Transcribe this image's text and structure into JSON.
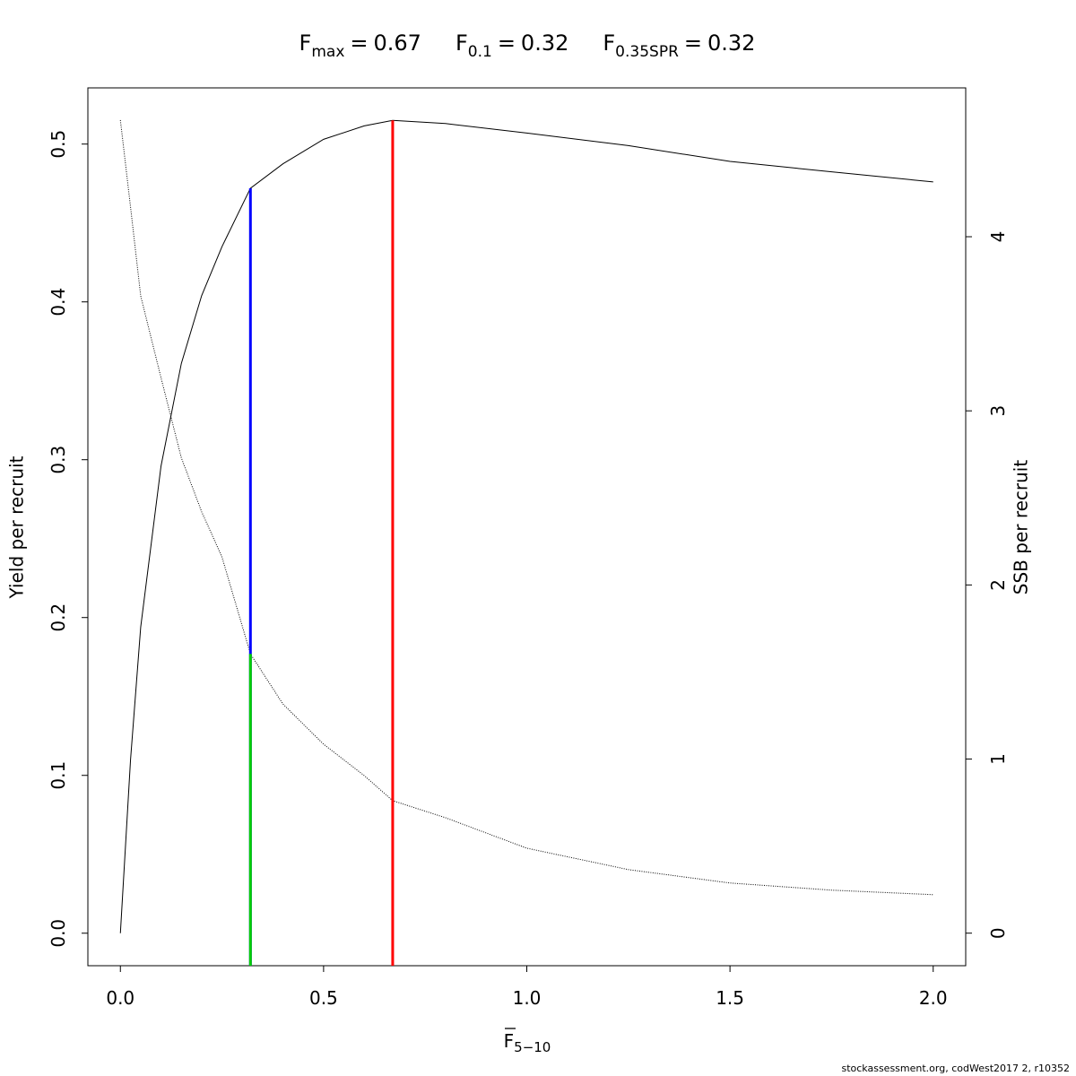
{
  "chart_data": {
    "type": "line",
    "title": [
      {
        "label": "F",
        "subscript": "max",
        "sep": "=",
        "value": 0.67
      },
      {
        "label": "F",
        "subscript": "0.1",
        "sep": "=",
        "value": 0.32
      },
      {
        "label": "F",
        "subscript": "0.35SPR",
        "sep": "=",
        "value": 0.32
      }
    ],
    "x_label": {
      "label": "F",
      "subscript": "5−10"
    },
    "y_label": "Yield per recruit",
    "y2_label": "SSB per recruit",
    "footnote": "stockassessment.org, codWest2017 2, r10352",
    "x": [
      0,
      0.025,
      0.05,
      0.1,
      0.15,
      0.2,
      0.25,
      0.32,
      0.4,
      0.5,
      0.6,
      0.67,
      0.8,
      1.0,
      1.25,
      1.5,
      1.75,
      2.0
    ],
    "series": [
      {
        "name": "Yield per recruit",
        "color": "#000000",
        "linestyle": "solid",
        "values": [
          0,
          0.11,
          0.194,
          0.296,
          0.361,
          0.404,
          0.435,
          0.472,
          0.4875,
          0.503,
          0.5115,
          0.515,
          0.513,
          0.507,
          0.499,
          0.489,
          0.4824,
          0.476
        ]
      },
      {
        "name": "SSB per recruit",
        "color": "#000000",
        "linestyle": "dotted",
        "axis": "y2",
        "values": [
          4.67,
          4.17,
          3.66,
          3.19,
          2.73,
          2.42,
          2.16,
          1.604,
          1.316,
          1.085,
          0.905,
          0.761,
          0.663,
          0.488,
          0.365,
          0.288,
          0.247,
          0.221
        ]
      }
    ],
    "reference_lines": [
      {
        "title_index": 1,
        "color": "#0000ff",
        "to_series": 0,
        "to_index": 7
      },
      {
        "title_index": 2,
        "color": "#00cd00",
        "to_series": 1,
        "to_index": 7
      },
      {
        "title_index": 0,
        "color": "#ff0000",
        "to_series": 0,
        "to_index": 11
      }
    ],
    "xlim": [
      -0.08,
      2.08
    ],
    "ylim": [
      -0.0206,
      0.5356
    ],
    "y2lim": [
      -0.187,
      4.855
    ],
    "xticks": [
      {
        "value": 0,
        "label": "0.0"
      },
      0.5,
      {
        "value": 1,
        "label": "1.0"
      },
      1.5,
      {
        "value": 2,
        "label": "2.0"
      }
    ],
    "yticks": [
      {
        "value": 0,
        "label": "0.0"
      },
      0.1,
      0.2,
      0.3,
      0.4,
      0.5
    ],
    "y2ticks": [
      0,
      1,
      2,
      3,
      4
    ]
  }
}
